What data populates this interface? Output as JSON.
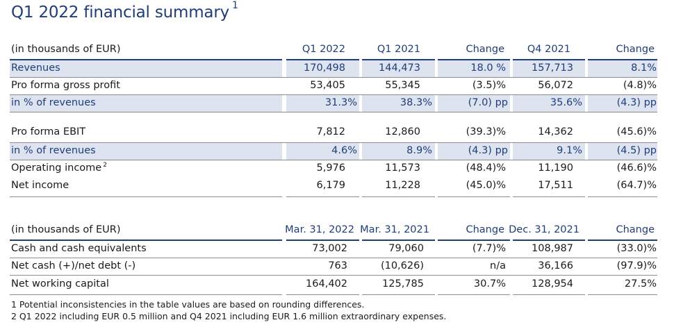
{
  "title": {
    "text": "Q1 2022 financial summary",
    "footnote_ref": "1"
  },
  "table1": {
    "header": [
      "(in thousands of EUR)",
      "Q1 2022",
      "Q1 2021",
      "Change",
      "Q4 2021",
      "Change"
    ],
    "rows": [
      {
        "label": "Revenues",
        "sup": "",
        "values": [
          "170,498",
          "144,473",
          "18.0 %",
          "157,713",
          "8.1%"
        ]
      },
      {
        "label": "Pro forma gross profit",
        "sup": "",
        "values": [
          "53,405",
          "55,345",
          "(3.5)%",
          "56,072",
          "(4.8)%"
        ]
      },
      {
        "label": "in % of revenues",
        "sup": "",
        "values": [
          "31.3%",
          "38.3%",
          "(7.0) pp",
          "35.6%",
          "(4.3) pp"
        ]
      },
      {
        "label": "Pro forma EBIT",
        "sup": "",
        "values": [
          "7,812",
          "12,860",
          "(39.3)%",
          "14,362",
          "(45.6)%"
        ]
      },
      {
        "label": "in % of revenues",
        "sup": "",
        "values": [
          "4.6%",
          "8.9%",
          "(4.3) pp",
          "9.1%",
          "(4.5) pp"
        ]
      },
      {
        "label": "Operating income",
        "sup": "2",
        "values": [
          "5,976",
          "11,573",
          "(48.4)%",
          "11,190",
          "(46.6)%"
        ]
      },
      {
        "label": "Net income",
        "sup": "",
        "values": [
          "6,179",
          "11,228",
          "(45.0)%",
          "17,511",
          "(64.7)%"
        ]
      }
    ]
  },
  "table2": {
    "header": [
      "(in thousands of EUR)",
      "Mar. 31, 2022",
      "Mar. 31, 2021",
      "Change",
      "Dec. 31, 2021",
      "Change"
    ],
    "rows": [
      {
        "label": "Cash and cash equivalents",
        "values": [
          "73,002",
          "79,060",
          "(7.7)%",
          "108,987",
          "(33.0)%"
        ]
      },
      {
        "label": "Net cash (+)/net debt (-)",
        "values": [
          "763",
          "(10,626)",
          "n/a",
          "36,166",
          "(97.9)%"
        ]
      },
      {
        "label": "Net working capital",
        "values": [
          "164,402",
          "125,785",
          "30.7%",
          "128,954",
          "27.5%"
        ]
      }
    ]
  },
  "footnotes": [
    "1 Potential inconsistencies in the table values are based on rounding differences.",
    "2 Q1 2022 including EUR 0.5 million and Q4 2021 including EUR 1.6 million extraordinary expenses."
  ],
  "colors": {
    "accent": "#1f3d7a",
    "shade": "#dde3ef",
    "rule": "#8a8a8a"
  }
}
